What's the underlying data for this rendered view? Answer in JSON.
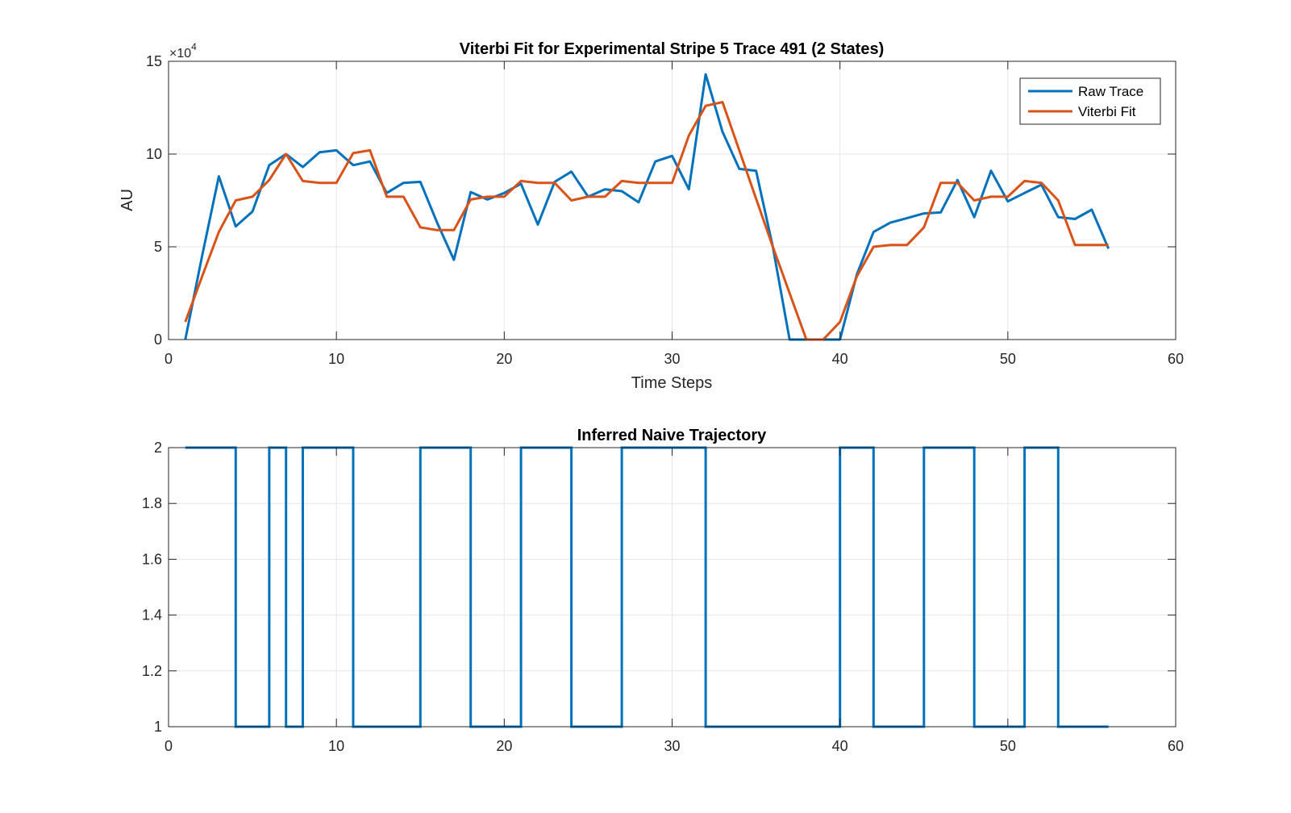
{
  "chart_data": [
    {
      "type": "line",
      "title": "Viterbi Fit for Experimental Stripe 5 Trace 491 (2 States)",
      "xlabel": "Time Steps",
      "ylabel": "AU",
      "y_exponent_label": "×10",
      "y_exponent_power": "4",
      "xlim": [
        0,
        60
      ],
      "ylim": [
        0,
        150000
      ],
      "xticks": [
        0,
        10,
        20,
        30,
        40,
        50,
        60
      ],
      "yticks": [
        0,
        50000,
        100000,
        150000
      ],
      "ytick_labels": [
        "0",
        "5",
        "10",
        "15"
      ],
      "grid": true,
      "legend_position": "top-right",
      "x": [
        1,
        2,
        3,
        4,
        5,
        6,
        7,
        8,
        9,
        10,
        11,
        12,
        13,
        14,
        15,
        16,
        17,
        18,
        19,
        20,
        21,
        22,
        23,
        24,
        25,
        26,
        27,
        28,
        29,
        30,
        31,
        32,
        33,
        34,
        35,
        36,
        37,
        38,
        39,
        40,
        41,
        42,
        43,
        44,
        45,
        46,
        47,
        48,
        49,
        50,
        51,
        52,
        53,
        54,
        55,
        56
      ],
      "series": [
        {
          "name": "Raw Trace",
          "color": "#0072BD",
          "values": [
            0,
            45000,
            88000,
            61000,
            69000,
            94000,
            100000,
            93000,
            101000,
            102000,
            94000,
            96000,
            79000,
            84500,
            85000,
            63000,
            43000,
            79500,
            75500,
            79000,
            84000,
            62000,
            85000,
            90500,
            77000,
            81000,
            80000,
            74000,
            96000,
            99000,
            81000,
            143000,
            112000,
            92000,
            91000,
            50000,
            0,
            0,
            0,
            0,
            35000,
            58000,
            63000,
            65500,
            68000,
            68500,
            86000,
            66000,
            91000,
            74500,
            79000,
            83500,
            66000,
            65000,
            70000,
            49000
          ]
        },
        {
          "name": "Viterbi Fit",
          "color": "#D95319",
          "values": [
            9500,
            34000,
            58000,
            75000,
            77000,
            86000,
            100000,
            85500,
            84500,
            84500,
            100500,
            102000,
            77000,
            77000,
            60500,
            59000,
            59000,
            75500,
            77000,
            77000,
            85500,
            84500,
            84500,
            75000,
            77000,
            77000,
            85500,
            84500,
            84500,
            84500,
            110000,
            126000,
            128000,
            102000,
            76000,
            50000,
            25000,
            0,
            0,
            9500,
            34000,
            50000,
            51000,
            51000,
            60500,
            84500,
            84500,
            75000,
            77000,
            77000,
            85500,
            84500,
            75000,
            51000,
            51000,
            51000
          ]
        }
      ]
    },
    {
      "type": "line",
      "title": "Inferred Naive Trajectory",
      "xlabel": "",
      "ylabel": "",
      "xlim": [
        0,
        60
      ],
      "ylim": [
        1,
        2
      ],
      "xticks": [
        0,
        10,
        20,
        30,
        40,
        50,
        60
      ],
      "yticks": [
        1,
        1.2,
        1.4,
        1.6,
        1.8,
        2
      ],
      "ytick_labels": [
        "1",
        "1.2",
        "1.4",
        "1.6",
        "1.8",
        "2"
      ],
      "grid": true,
      "series": [
        {
          "color": "#0072BD",
          "segments": [
            {
              "from": 1,
              "to": 4,
              "state": 2
            },
            {
              "from": 4,
              "to": 6,
              "state": 1
            },
            {
              "from": 6,
              "to": 7,
              "state": 2
            },
            {
              "from": 7,
              "to": 8,
              "state": 1
            },
            {
              "from": 8,
              "to": 11,
              "state": 2
            },
            {
              "from": 11,
              "to": 15,
              "state": 1
            },
            {
              "from": 15,
              "to": 18,
              "state": 2
            },
            {
              "from": 18,
              "to": 21,
              "state": 1
            },
            {
              "from": 21,
              "to": 24,
              "state": 2
            },
            {
              "from": 24,
              "to": 27,
              "state": 1
            },
            {
              "from": 27,
              "to": 32,
              "state": 2
            },
            {
              "from": 32,
              "to": 40,
              "state": 1
            },
            {
              "from": 40,
              "to": 42,
              "state": 2
            },
            {
              "from": 42,
              "to": 45,
              "state": 1
            },
            {
              "from": 45,
              "to": 48,
              "state": 2
            },
            {
              "from": 48,
              "to": 51,
              "state": 1
            },
            {
              "from": 51,
              "to": 53,
              "state": 2
            },
            {
              "from": 53,
              "to": 56,
              "state": 1
            }
          ]
        }
      ]
    }
  ]
}
